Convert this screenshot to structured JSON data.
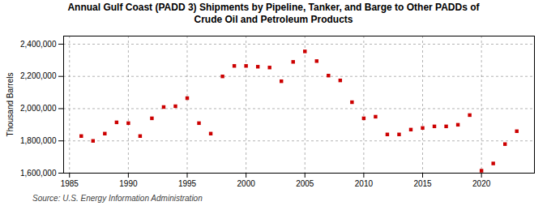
{
  "chart_data": {
    "type": "scatter",
    "title": "Annual Gulf Coast (PADD 3) Shipments by Pipeline, Tanker, and Barge to Other PADDs of\nCrude Oil and Petroleum Products",
    "ylabel": "Thousand Barrels",
    "source": "Source: U.S. Energy Information Administration",
    "x": [
      1986,
      1987,
      1988,
      1989,
      1990,
      1991,
      1992,
      1993,
      1994,
      1995,
      1996,
      1997,
      1998,
      1999,
      2000,
      2001,
      2002,
      2003,
      2004,
      2005,
      2006,
      2007,
      2008,
      2009,
      2010,
      2011,
      2012,
      2013,
      2014,
      2015,
      2016,
      2017,
      2018,
      2019,
      2020,
      2021,
      2022,
      2023
    ],
    "values": [
      1830000,
      1800000,
      1845000,
      1915000,
      1910000,
      1830000,
      1940000,
      2010000,
      2015000,
      2065000,
      1910000,
      1845000,
      2200000,
      2265000,
      2265000,
      2260000,
      2255000,
      2170000,
      2290000,
      2355000,
      2295000,
      2205000,
      2175000,
      2040000,
      1940000,
      1950000,
      1840000,
      1840000,
      1870000,
      1880000,
      1890000,
      1890000,
      1900000,
      1960000,
      1615000,
      1660000,
      1780000,
      1860000
    ],
    "color": "#cc0000",
    "marker": "square",
    "xlim": [
      1984.5,
      2024.5
    ],
    "xticks": [
      1985,
      1990,
      1995,
      2000,
      2005,
      2010,
      2015,
      2020
    ],
    "ylim": [
      1600000,
      2450000
    ],
    "yticks": [
      {
        "value": 1600000,
        "label": "1,600,000"
      },
      {
        "value": 1800000,
        "label": "1,800,000"
      },
      {
        "value": 2000000,
        "label": "2,000,000"
      },
      {
        "value": 2200000,
        "label": "2,200,000"
      },
      {
        "value": 2400000,
        "label": "2,400,000"
      }
    ],
    "grid": true
  }
}
